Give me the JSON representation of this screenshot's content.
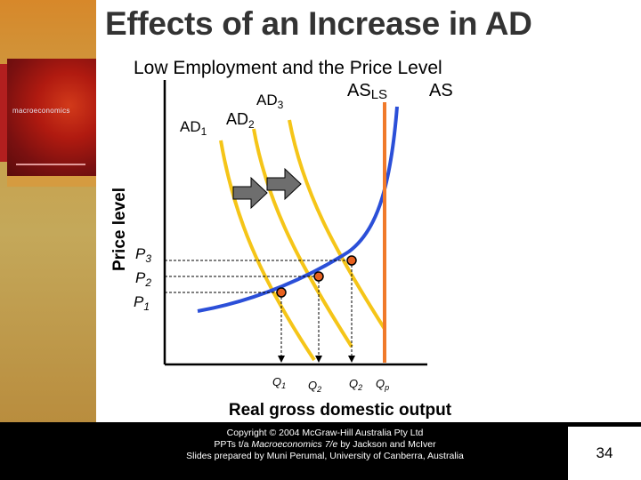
{
  "slide": {
    "title": "Effects of an Increase in AD",
    "subtitle": "Low Employment and the Price Level",
    "cover_text": "macroeconomics",
    "page_number": "34"
  },
  "diagram": {
    "y_axis_label": "Price level",
    "x_axis_label": "Real gross domestic output",
    "curves": {
      "ad1": {
        "label_main": "AD",
        "label_sub": "1"
      },
      "ad2": {
        "label_main": "AD",
        "label_sub": "2"
      },
      "ad3": {
        "label_main": "AD",
        "label_sub": "3"
      },
      "asls": {
        "label_main": "AS",
        "label_sub": "LS"
      },
      "as": {
        "label_main": "AS"
      }
    },
    "prices": {
      "p1": {
        "main": "P",
        "sub": "1"
      },
      "p2": {
        "main": "P",
        "sub": "2"
      },
      "p3": {
        "main": "P",
        "sub": "3"
      }
    },
    "quantities": {
      "q1": {
        "main": "Q",
        "sub": "1"
      },
      "q2a": {
        "main": "Q",
        "sub": "2"
      },
      "q2b": {
        "main": "Q",
        "sub": "2"
      },
      "qp": {
        "main": "Q",
        "sub": "p"
      }
    },
    "colors": {
      "ad_curves": "#f5c518",
      "as_curve": "#2b4fd8",
      "asls_line": "#f07a2a",
      "arrows": "#6e6e6e",
      "points": "#e8611f"
    }
  },
  "footer": {
    "line1": "Copyright © 2004 McGraw-Hill Australia Pty Ltd",
    "line2_pre": "PPTs t/a ",
    "line2_italic": "Macroeconomics 7/e",
    "line2_post": " by Jackson and McIver",
    "line3": "Slides prepared by Muni Perumal, University of Canberra, Australia"
  }
}
